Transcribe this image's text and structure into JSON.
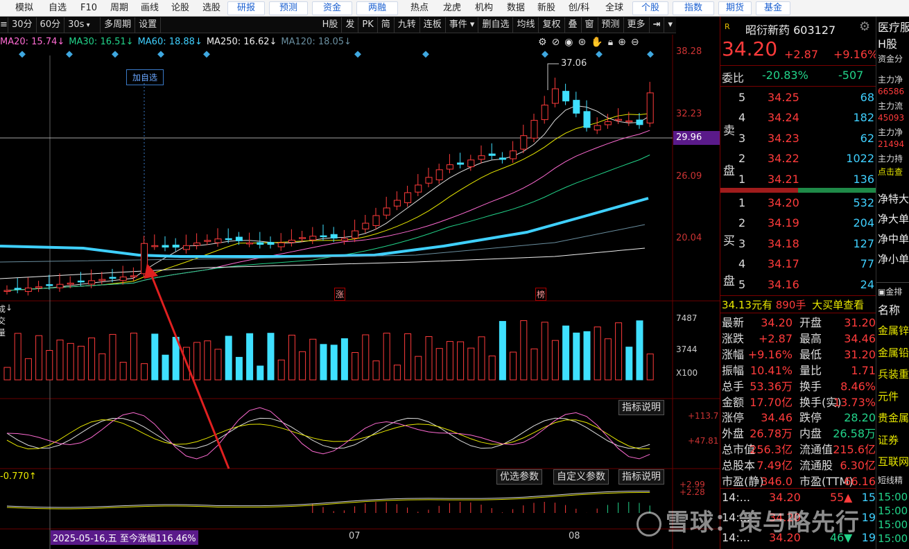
{
  "topnav": [
    "模拟",
    "自选",
    "F10",
    "周期",
    "画线",
    "论股",
    "选股",
    "研报",
    "预测",
    "资金",
    "两融",
    "热点",
    "龙虎",
    "机构",
    "数据",
    "新股",
    "创/科",
    "全球",
    "个股",
    "指数",
    "期货",
    "基金"
  ],
  "toolbar": {
    "periods": [
      "30分",
      "60分",
      "30s"
    ],
    "multi": "多周期",
    "settings": "设置",
    "right": [
      "H股",
      "发",
      "PK",
      "简",
      "九转",
      "连板",
      "事件 ▾",
      "删自选",
      "均线",
      "复权",
      "叠",
      "窗",
      "预测",
      "更多"
    ]
  },
  "ma": [
    {
      "label": "MA20: 15.74↓",
      "color": "#ff6bd3"
    },
    {
      "label": "MA30: 16.51↓",
      "color": "#22d48a"
    },
    {
      "label": "MA60: 18.88↓",
      "color": "#3fd0ff"
    },
    {
      "label": "MA250: 16.62↓",
      "color": "#f0f0f0"
    },
    {
      "label": "MA120: 18.05↓",
      "color": "#6a8fa0"
    }
  ],
  "main_chart": {
    "price_axis": [
      "38.28",
      "32.23",
      "26.09",
      "20.04"
    ],
    "current_price_tag": "29.96",
    "high_marker": "37.06",
    "add_watch_label": "加自选",
    "event_tags": [
      "涨",
      "榜"
    ]
  },
  "volume_panel": {
    "title": "成交量",
    "axis": [
      "7487",
      "3744",
      "X100"
    ]
  },
  "kdj_panel": {
    "axis": [
      "+113.7",
      "+47.81"
    ],
    "explain": "指标说明"
  },
  "macd_panel": {
    "label": "-0.770↑",
    "opt": "优选参数",
    "custom": "自定义参数",
    "explain": "指标说明",
    "axis": [
      "+2.99",
      "+2.28"
    ]
  },
  "date_bar": {
    "range_label": "2025-05-16,五 至今涨幅116.46%",
    "months": [
      "07",
      "08"
    ]
  },
  "stock": {
    "name": "昭衍新药",
    "code": "603127",
    "price": "34.20",
    "change": "+2.87",
    "pct": "+9.16%",
    "weibi_label": "委比",
    "weibi": "-20.83%",
    "weicha": "-507",
    "sell_label": "卖盘",
    "buy_label": "买盘",
    "asks": [
      {
        "lvl": "5",
        "p": "34.25",
        "v": "68"
      },
      {
        "lvl": "4",
        "p": "34.24",
        "v": "182"
      },
      {
        "lvl": "3",
        "p": "34.23",
        "v": "62"
      },
      {
        "lvl": "2",
        "p": "34.22",
        "v": "1022"
      },
      {
        "lvl": "1",
        "p": "34.21",
        "v": "136"
      }
    ],
    "bids": [
      {
        "lvl": "1",
        "p": "34.20",
        "v": "532"
      },
      {
        "lvl": "2",
        "p": "34.19",
        "v": "204"
      },
      {
        "lvl": "3",
        "p": "34.18",
        "v": "127"
      },
      {
        "lvl": "4",
        "p": "34.17",
        "v": "77"
      },
      {
        "lvl": "5",
        "p": "34.16",
        "v": "24"
      }
    ],
    "bigorder": {
      "amt": "34.13元有",
      "hands": "890手",
      "link": "大买单查看"
    },
    "stats": [
      [
        "最新",
        "34.20",
        "开盘",
        "31.20"
      ],
      [
        "涨跌",
        "+2.87",
        "最高",
        "34.46"
      ],
      [
        "涨幅",
        "+9.16%",
        "最低",
        "31.20"
      ],
      [
        "振幅",
        "10.41%",
        "量比",
        "1.71"
      ],
      [
        "总手",
        "53.36万",
        "换手",
        "8.46%"
      ],
      [
        "金额",
        "17.70亿",
        "换手(实)",
        "13.73%"
      ],
      [
        "涨停",
        "34.46",
        "跌停",
        "28.20"
      ],
      [
        "外盘",
        "26.78万",
        "内盘",
        "26.58万"
      ],
      [
        "总市值",
        "256.3亿",
        "流通值",
        "215.6亿"
      ],
      [
        "总股本",
        "7.49亿",
        "流通股",
        "6.30亿"
      ],
      [
        "市盈(静)",
        "346.0",
        "市盈(TTM)",
        "66.16"
      ]
    ],
    "ticks": [
      {
        "t": "14:...",
        "p": "34.20",
        "v": "55",
        "arrow": "▲",
        "n": "15"
      },
      {
        "t": "14:...",
        "p": "34.20",
        "v": "",
        "arrow": "",
        "n": "19"
      },
      {
        "t": "14:...",
        "p": "34.20",
        "v": "46",
        "arrow": "▼",
        "n": "19"
      }
    ]
  },
  "far": {
    "title": "医疗服",
    "sub": "H股",
    "funds": "资金分",
    "items": [
      "主力净",
      "66586",
      "主力流",
      "45093",
      "主力净",
      "21494",
      "主力持",
      "点击查"
    ],
    "flows": [
      "净特大",
      "净大单",
      "净中单",
      "净小单"
    ],
    "rank": "金排",
    "namehdr": "名称",
    "sectors": [
      "金属锌",
      "金属铅",
      "兵装重",
      "元件",
      "贵金属",
      "证券",
      "互联网"
    ],
    "short": "短线精",
    "times": [
      "15:00",
      "15:00",
      "15:00",
      "15:00"
    ]
  },
  "watermark": "雪球：策与略先行",
  "colors": {
    "bg": "#000000",
    "up": "#ff3b3b",
    "down": "#22d48a",
    "cyan": "#3fd0ff",
    "grid": "#6a0000"
  }
}
